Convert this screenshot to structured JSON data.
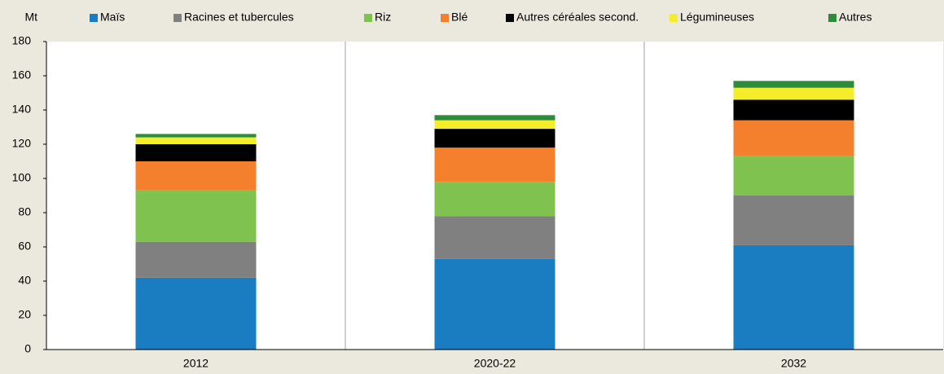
{
  "chart_data": {
    "type": "stacked_bar",
    "y_label": "Mt",
    "categories": [
      "2012",
      "2020-22",
      "2032"
    ],
    "series": [
      {
        "name": "Maïs",
        "color": "#1a7dc2",
        "values": [
          42,
          53,
          61
        ]
      },
      {
        "name": "Racines et tubercules",
        "color": "#808080",
        "values": [
          21,
          25,
          29
        ]
      },
      {
        "name": "Riz",
        "color": "#7fc24f",
        "values": [
          30,
          20,
          23
        ]
      },
      {
        "name": "Blé",
        "color": "#f47f2d",
        "values": [
          17,
          20,
          21
        ]
      },
      {
        "name": "Autres céréales second.",
        "color": "#000000",
        "values": [
          10,
          11,
          12
        ]
      },
      {
        "name": "Légumineuses",
        "color": "#f5ec2a",
        "values": [
          4,
          5,
          7
        ]
      },
      {
        "name": "Autres",
        "color": "#2e8b3c",
        "values": [
          2,
          3,
          4
        ]
      }
    ],
    "ylim": [
      0,
      180
    ],
    "yticks": [
      0,
      20,
      40,
      60,
      80,
      100,
      120,
      140,
      160,
      180
    ],
    "legend": "top"
  }
}
